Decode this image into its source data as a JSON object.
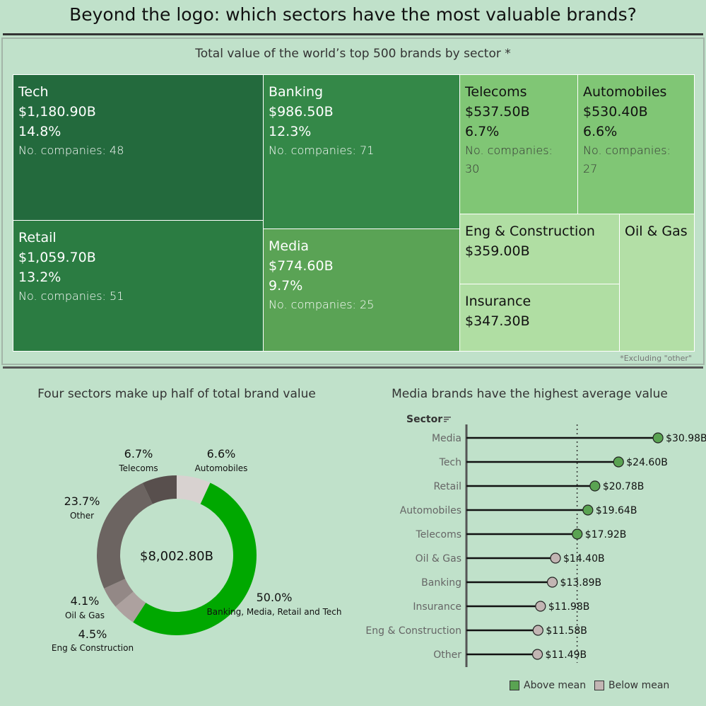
{
  "page": {
    "title": "Beyond the logo: which sectors have the most valuable brands?",
    "footnote": "*Excluding \"other\""
  },
  "colors": {
    "background": "#c0e1ca",
    "above_mean": "#5aa352",
    "below_mean": "#c2b5b3",
    "donut_highlight": "#00a800"
  },
  "chart_data": [
    {
      "type": "treemap",
      "title": "Total value of the world’s top 500 brands by sector *",
      "items": [
        {
          "name": "Tech",
          "value_label": "$1,180.90B",
          "value": 1180.9,
          "pct_label": "14.8%",
          "companies_label": "No. companies: 48",
          "companies": 48,
          "color": "#236a3d"
        },
        {
          "name": "Retail",
          "value_label": "$1,059.70B",
          "value": 1059.7,
          "pct_label": "13.2%",
          "companies_label": "No. companies: 51",
          "companies": 51,
          "color": "#2b7c42"
        },
        {
          "name": "Banking",
          "value_label": "$986.50B",
          "value": 986.5,
          "pct_label": "12.3%",
          "companies_label": "No. companies: 71",
          "companies": 71,
          "color": "#348848"
        },
        {
          "name": "Media",
          "value_label": "$774.60B",
          "value": 774.6,
          "pct_label": "9.7%",
          "companies_label": "No. companies: 25",
          "companies": 25,
          "color": "#5aa355"
        },
        {
          "name": "Telecoms",
          "value_label": "$537.50B",
          "value": 537.5,
          "pct_label": "6.7%",
          "companies_label": "No. companies:",
          "companies_value": "30",
          "companies": 30,
          "color": "#80c675"
        },
        {
          "name": "Automobiles",
          "value_label": "$530.40B",
          "value": 530.4,
          "pct_label": "6.6%",
          "companies_label": "No. companies:",
          "companies_value": "27",
          "companies": 27,
          "color": "#80c675"
        },
        {
          "name": "Eng & Construction",
          "value_label": "$359.00B",
          "value": 359.0,
          "color": "#b0dea3"
        },
        {
          "name": "Insurance",
          "value_label": "$347.30B",
          "value": 347.3,
          "color": "#b0dea3"
        },
        {
          "name": "Oil & Gas",
          "value": null,
          "color": "#b3dfa6"
        }
      ]
    },
    {
      "type": "pie",
      "title": "Four sectors make up half of total brand value",
      "center_label": "$8,002.80B",
      "slices": [
        {
          "label": "Automobiles",
          "pct": 6.6,
          "pct_label": "6.6%",
          "color": "#d8d2d0"
        },
        {
          "label": "Banking, Media, Retail and Tech",
          "pct": 50.0,
          "pct_label": "50.0%",
          "color": "#00a800"
        },
        {
          "label": "Eng & Construction",
          "pct": 4.5,
          "pct_label": "4.5%",
          "color": "#ada19f"
        },
        {
          "label": "Oil & Gas",
          "pct": 4.1,
          "pct_label": "4.1%",
          "color": "#938886"
        },
        {
          "label": "Other",
          "pct": 23.7,
          "pct_label": "23.7%",
          "color": "#6c6461"
        },
        {
          "label": "Telecoms",
          "pct": 6.7,
          "pct_label": "6.7%",
          "color": "#584f4d"
        }
      ]
    },
    {
      "type": "lollipop",
      "title": "Media brands have the highest average value",
      "axis_header": "Sector",
      "mean": 17.9,
      "xlim": [
        0,
        36
      ],
      "categories": [
        "Media",
        "Tech",
        "Retail",
        "Automobiles",
        "Telecoms",
        "Oil & Gas",
        "Banking",
        "Insurance",
        "Eng & Construction",
        "Other"
      ],
      "values": [
        30.98,
        24.6,
        20.78,
        19.64,
        17.92,
        14.4,
        13.89,
        11.98,
        11.58,
        11.49
      ],
      "value_labels": [
        "$30.98B",
        "$24.60B",
        "$20.78B",
        "$19.64B",
        "$17.92B",
        "$14.40B",
        "$13.89B",
        "$11.98B",
        "$11.58B",
        "$11.49B"
      ],
      "groups": [
        "above",
        "above",
        "above",
        "above",
        "above",
        "below",
        "below",
        "below",
        "below",
        "below"
      ],
      "legend": [
        {
          "key": "above",
          "label": "Above mean"
        },
        {
          "key": "below",
          "label": "Below mean"
        }
      ]
    }
  ]
}
